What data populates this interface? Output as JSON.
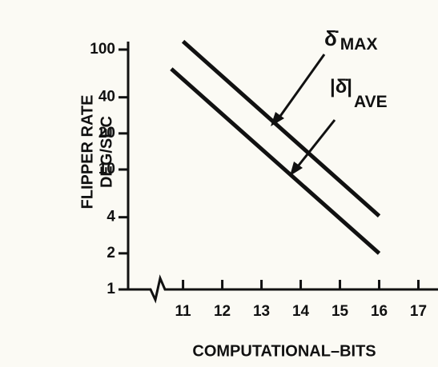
{
  "chart_data": {
    "type": "line",
    "xlabel": "COMPUTATIONAL–BITS",
    "ylabel": [
      "FLIPPER RATE",
      "DEG/SEC"
    ],
    "xlim": [
      9.6,
      17.5
    ],
    "xticks": [
      11,
      12,
      13,
      14,
      15,
      16,
      17
    ],
    "ylim": [
      1,
      100
    ],
    "yticks": [
      1,
      2,
      4,
      10,
      20,
      40,
      100
    ],
    "log_y": true,
    "grid": false,
    "series": [
      {
        "color": "#111111",
        "x": [
          11,
          16
        ],
        "values": [
          117,
          4.1
        ]
      },
      {
        "color": "#111111",
        "x": [
          10.7,
          16
        ],
        "values": [
          69,
          2
        ]
      }
    ],
    "annotations": [
      {
        "symbol": "δ̇",
        "subscript": "MAX"
      },
      {
        "symbol": "|δ̇|",
        "subscript": "AVE"
      }
    ]
  }
}
